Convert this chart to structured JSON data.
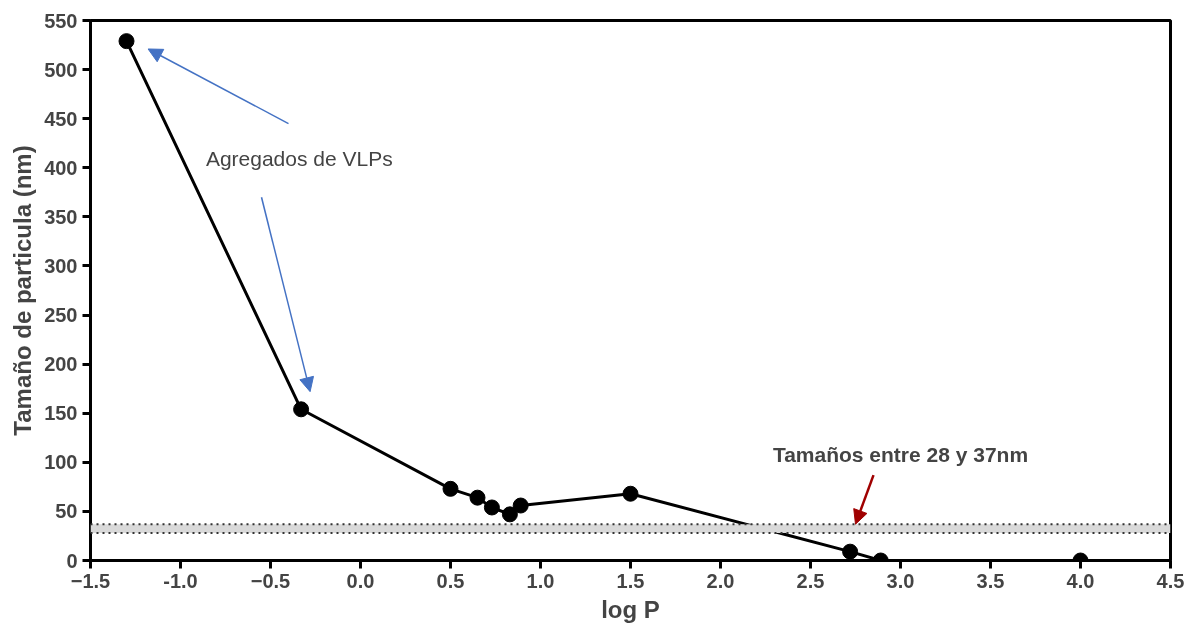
{
  "chart_data": {
    "type": "line",
    "xlabel": "log P",
    "ylabel": "Tamaño de particula (nm)",
    "x": [
      -1.3,
      -0.33,
      0.5,
      0.65,
      0.73,
      0.83,
      0.89,
      1.5,
      2.72,
      2.89,
      4.0
    ],
    "series": [
      {
        "color": "#000000",
        "values": [
          529,
          154,
          73,
          64,
          54,
          47,
          56,
          68,
          9,
          0,
          0
        ]
      }
    ],
    "xlim": [
      -1.5,
      4.5
    ],
    "xticks": [
      -1.5,
      {
        "value": -1,
        "label": "-1.0"
      },
      -0.5,
      {
        "value": 0,
        "label": "0.0"
      },
      0.5,
      {
        "value": 1,
        "label": "1.0"
      },
      1.5,
      {
        "value": 2,
        "label": "2.0"
      },
      2.5,
      {
        "value": 3,
        "label": "3.0"
      },
      3.5,
      {
        "value": 4,
        "label": "4.0"
      },
      4.5
    ],
    "ylim": [
      0,
      550
    ],
    "yticks": [
      0,
      50,
      100,
      150,
      200,
      250,
      300,
      350,
      400,
      450,
      500,
      550
    ],
    "bands": [
      {
        "axis": "y",
        "from": 28,
        "to": 37,
        "color": "#d9d9d9"
      }
    ],
    "ref_lines": [
      {
        "axis": "y",
        "value": 28,
        "color": "#333333",
        "line_style": "dotted"
      },
      {
        "axis": "y",
        "value": 37,
        "color": "#333333",
        "line_style": "dotted"
      }
    ],
    "annotations": [
      "Agregados de VLPs",
      {
        "text": "Tamaños entre 28 y 37nm",
        "x": 2.75,
        "y": 37
      }
    ],
    "marker": "circle",
    "line_style": "solid",
    "grid": false
  }
}
